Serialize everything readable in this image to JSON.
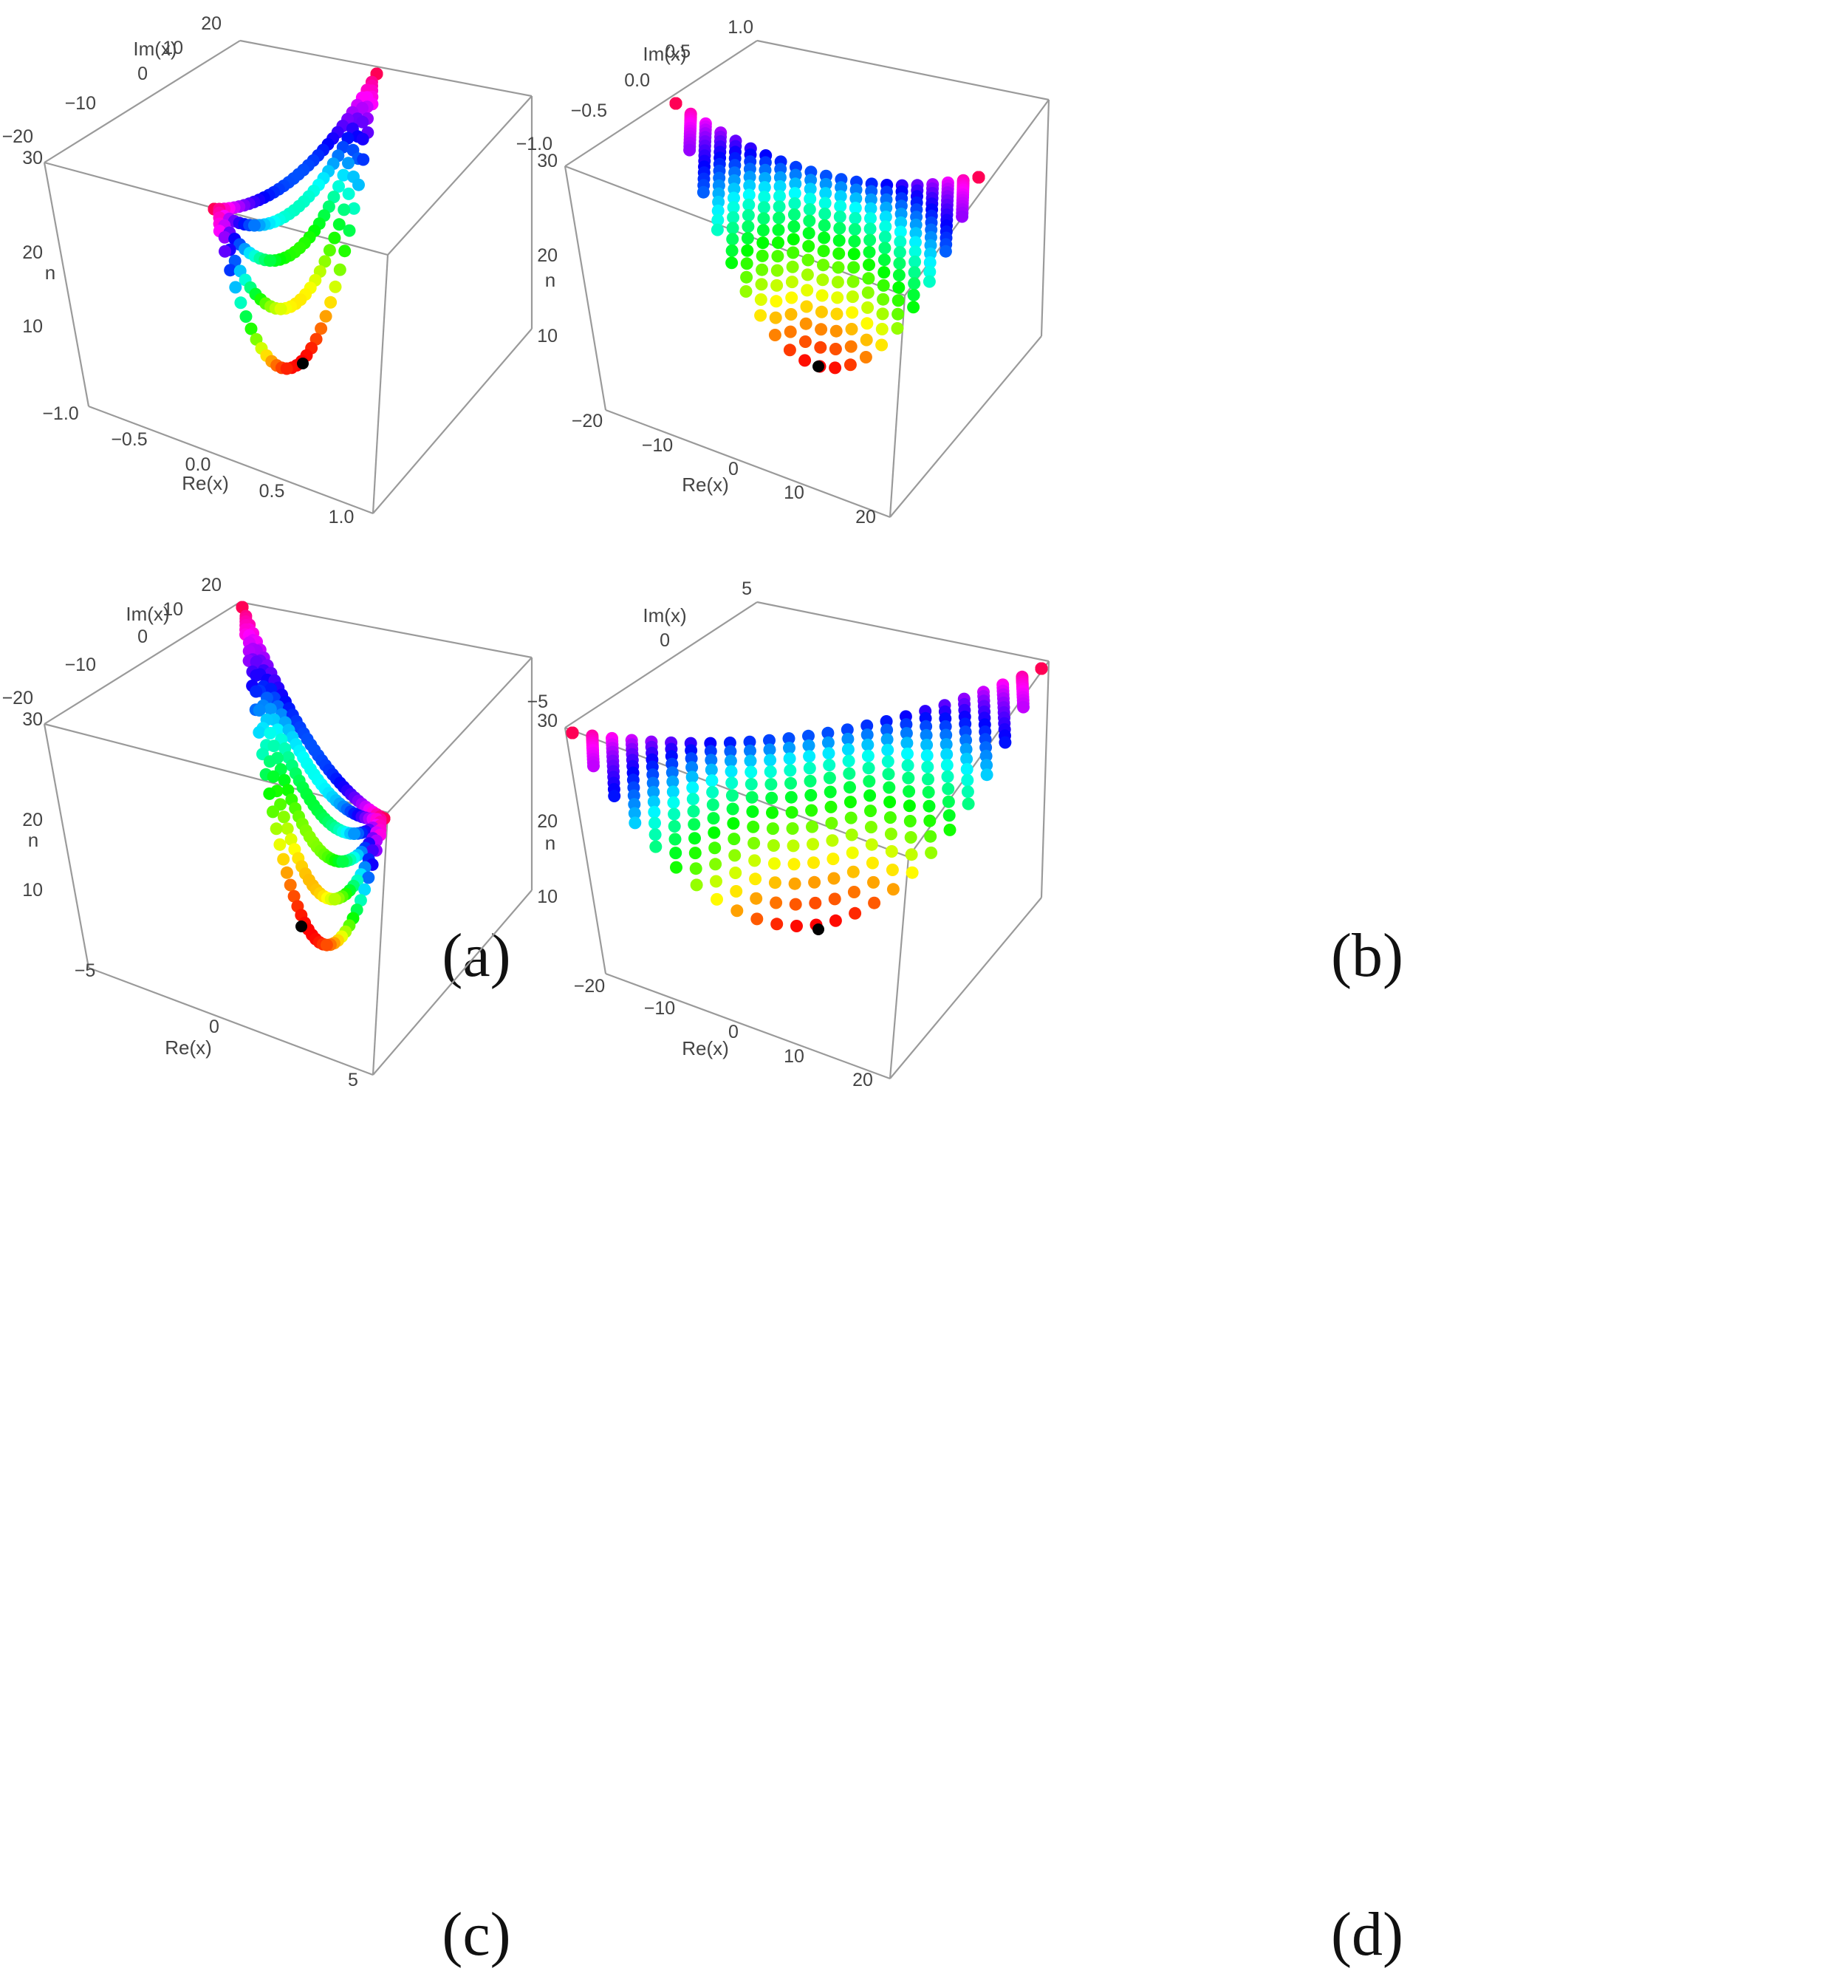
{
  "chart_data": [
    {
      "type": "scatter",
      "panel": "(a)",
      "xlabel": "Re(x)",
      "ylabel": "Im(x)",
      "zlabel": "n",
      "x_ticks": [
        "−1.0",
        "−0.5",
        "0.0",
        "0.5",
        "1.0"
      ],
      "y_ticks": [
        "−20",
        "−10",
        "0",
        "10",
        "20"
      ],
      "z_ticks": [
        "10",
        "20",
        "30"
      ],
      "xlim": [
        -1.0,
        1.0
      ],
      "ylim": [
        -20,
        20
      ],
      "zlim": [
        5,
        30
      ],
      "grid": false,
      "colors": {
        "start_point": "#000000",
        "low_n": "#ff2a00",
        "high_n": "#ff0044"
      }
    },
    {
      "type": "scatter",
      "panel": "(b)",
      "xlabel": "Re(x)",
      "ylabel": "Im(x)",
      "zlabel": "n",
      "x_ticks": [
        "−20",
        "−10",
        "0",
        "10",
        "20"
      ],
      "y_ticks": [
        "−1.0",
        "−0.5",
        "0.0",
        "0.5",
        "1.0"
      ],
      "z_ticks": [
        "10",
        "20",
        "30"
      ],
      "xlim": [
        -20,
        20
      ],
      "ylim": [
        -1.0,
        1.0
      ],
      "zlim": [
        5,
        30
      ],
      "grid": false,
      "colors": {
        "start_point": "#000000",
        "low_n": "#ff2a00",
        "high_n": "#ff0044"
      }
    },
    {
      "type": "scatter",
      "panel": "(c)",
      "xlabel": "Re(x)",
      "ylabel": "Im(x)",
      "zlabel": "n",
      "x_ticks": [
        "−5",
        "0",
        "5"
      ],
      "y_ticks": [
        "−20",
        "−10",
        "0",
        "10",
        "20"
      ],
      "z_ticks": [
        "10",
        "20",
        "30"
      ],
      "xlim": [
        -5,
        5
      ],
      "ylim": [
        -20,
        20
      ],
      "zlim": [
        5,
        30
      ],
      "grid": false,
      "colors": {
        "start_point": "#000000",
        "low_n": "#ff2a00",
        "high_n": "#ff0044"
      }
    },
    {
      "type": "scatter",
      "panel": "(d)",
      "xlabel": "Re(x)",
      "ylabel": "Im(x)",
      "zlabel": "n",
      "x_ticks": [
        "−20",
        "−10",
        "0",
        "10",
        "20"
      ],
      "y_ticks": [
        "−5",
        "0",
        "5"
      ],
      "z_ticks": [
        "10",
        "20",
        "30"
      ],
      "xlim": [
        -20,
        20
      ],
      "ylim": [
        -5,
        5
      ],
      "zlim": [
        5,
        30
      ],
      "grid": false,
      "colors": {
        "start_point": "#000000",
        "low_n": "#ff2a00",
        "high_n": "#ff0044"
      }
    }
  ]
}
